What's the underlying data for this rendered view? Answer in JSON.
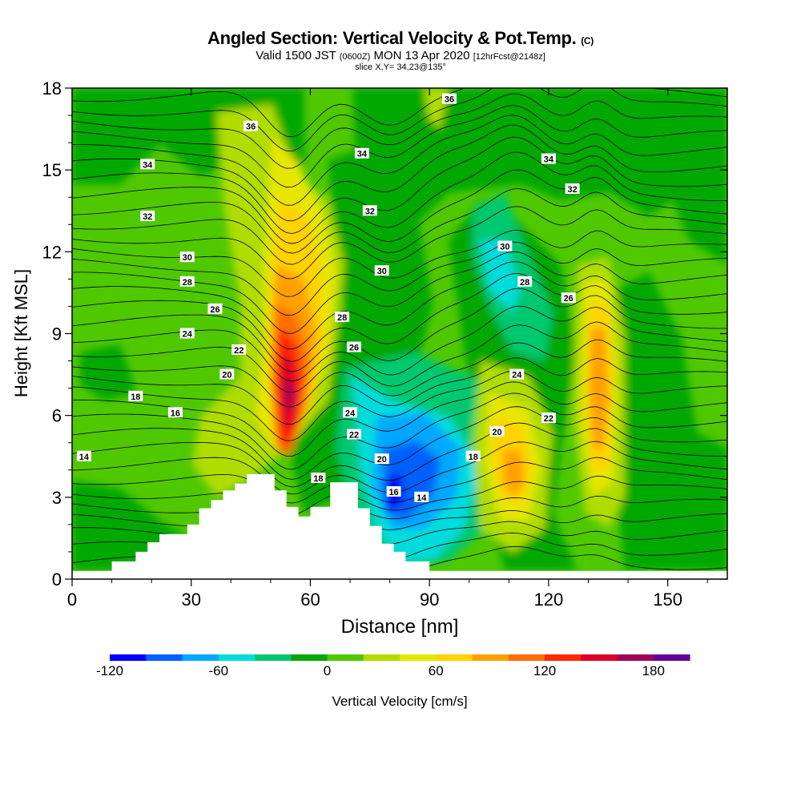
{
  "header": {
    "title": "Angled Section: Vertical Velocity & Pot.Temp.",
    "title_unit": "(C)",
    "valid_prefix": "Valid 1500 JST",
    "valid_zulu": "(0600Z)",
    "valid_date": "MON 13 Apr 2020",
    "forecast": "[12hrFcst@2148z]",
    "slice": "slice X,Y= 34,23@135°"
  },
  "chart_data": {
    "type": "heatmap",
    "xlabel": "Distance [nm]",
    "ylabel": "Height [Kft MSL]",
    "xlim": [
      0,
      165
    ],
    "ylim": [
      0,
      18
    ],
    "xticks": [
      0,
      30,
      60,
      90,
      120,
      150
    ],
    "yticks": [
      0,
      3,
      6,
      9,
      12,
      15,
      18
    ],
    "colorbar": {
      "label": "Vertical Velocity [cm/s]",
      "min": -120,
      "max": 200,
      "step": 20,
      "tick_labels": [
        "-120",
        "-60",
        "0",
        "60",
        "120",
        "180"
      ],
      "tick_values": [
        -120,
        -60,
        0,
        60,
        120,
        180
      ],
      "colors": [
        "#0000ff",
        "#0060ff",
        "#00a8ff",
        "#00dcdc",
        "#00c870",
        "#00a800",
        "#50c800",
        "#b0dc00",
        "#e6e600",
        "#ffd200",
        "#ffa000",
        "#ff6e00",
        "#ff2800",
        "#dc0028",
        "#a0005a",
        "#640096"
      ]
    },
    "terrain_kft": [
      [
        0,
        0.3
      ],
      [
        10,
        0.3
      ],
      [
        10,
        0.65
      ],
      [
        16,
        0.65
      ],
      [
        16,
        1.0
      ],
      [
        19,
        1.0
      ],
      [
        19,
        1.35
      ],
      [
        22,
        1.35
      ],
      [
        22,
        1.65
      ],
      [
        29,
        1.65
      ],
      [
        29,
        2.0
      ],
      [
        32,
        2.0
      ],
      [
        32,
        2.6
      ],
      [
        35,
        2.6
      ],
      [
        35,
        2.9
      ],
      [
        38,
        2.9
      ],
      [
        38,
        3.25
      ],
      [
        41,
        3.25
      ],
      [
        41,
        3.5
      ],
      [
        44,
        3.5
      ],
      [
        44,
        3.85
      ],
      [
        51,
        3.85
      ],
      [
        51,
        3.25
      ],
      [
        54,
        3.25
      ],
      [
        54,
        2.65
      ],
      [
        57,
        2.65
      ],
      [
        57,
        2.3
      ],
      [
        60,
        2.3
      ],
      [
        60,
        2.65
      ],
      [
        65,
        2.65
      ],
      [
        65,
        3.55
      ],
      [
        72,
        3.55
      ],
      [
        72,
        2.6
      ],
      [
        75,
        2.6
      ],
      [
        75,
        1.95
      ],
      [
        78,
        1.95
      ],
      [
        78,
        1.3
      ],
      [
        81,
        1.3
      ],
      [
        81,
        1.0
      ],
      [
        84,
        1.0
      ],
      [
        84,
        0.65
      ],
      [
        90,
        0.65
      ],
      [
        90,
        0.3
      ],
      [
        165,
        0.3
      ]
    ],
    "theta_contour_labels": [
      {
        "value": "36",
        "x": 45,
        "y": 16.6
      },
      {
        "value": "36",
        "x": 95,
        "y": 17.6
      },
      {
        "value": "34",
        "x": 19,
        "y": 15.2
      },
      {
        "value": "34",
        "x": 73,
        "y": 15.6
      },
      {
        "value": "34",
        "x": 120,
        "y": 15.4
      },
      {
        "value": "32",
        "x": 19,
        "y": 13.3
      },
      {
        "value": "32",
        "x": 75,
        "y": 13.5
      },
      {
        "value": "32",
        "x": 126,
        "y": 14.3
      },
      {
        "value": "30",
        "x": 29,
        "y": 11.8
      },
      {
        "value": "30",
        "x": 78,
        "y": 11.3
      },
      {
        "value": "30",
        "x": 109,
        "y": 12.2
      },
      {
        "value": "28",
        "x": 29,
        "y": 10.9
      },
      {
        "value": "28",
        "x": 68,
        "y": 9.6
      },
      {
        "value": "28",
        "x": 114,
        "y": 10.9
      },
      {
        "value": "26",
        "x": 36,
        "y": 9.9
      },
      {
        "value": "26",
        "x": 71,
        "y": 8.5
      },
      {
        "value": "26",
        "x": 125,
        "y": 10.3
      },
      {
        "value": "24",
        "x": 29,
        "y": 9.0
      },
      {
        "value": "24",
        "x": 70,
        "y": 6.1
      },
      {
        "value": "24",
        "x": 112,
        "y": 7.5
      },
      {
        "value": "22",
        "x": 42,
        "y": 8.4
      },
      {
        "value": "22",
        "x": 71,
        "y": 5.3
      },
      {
        "value": "22",
        "x": 120,
        "y": 5.9
      },
      {
        "value": "20",
        "x": 39,
        "y": 7.5
      },
      {
        "value": "20",
        "x": 78,
        "y": 4.4
      },
      {
        "value": "20",
        "x": 107,
        "y": 5.4
      },
      {
        "value": "18",
        "x": 16,
        "y": 6.7
      },
      {
        "value": "18",
        "x": 62,
        "y": 3.7
      },
      {
        "value": "18",
        "x": 101,
        "y": 4.5
      },
      {
        "value": "16",
        "x": 26,
        "y": 6.1
      },
      {
        "value": "16",
        "x": 81,
        "y": 3.2
      },
      {
        "value": "14",
        "x": 3,
        "y": 4.5
      },
      {
        "value": "14",
        "x": 88,
        "y": 3.0
      }
    ]
  }
}
